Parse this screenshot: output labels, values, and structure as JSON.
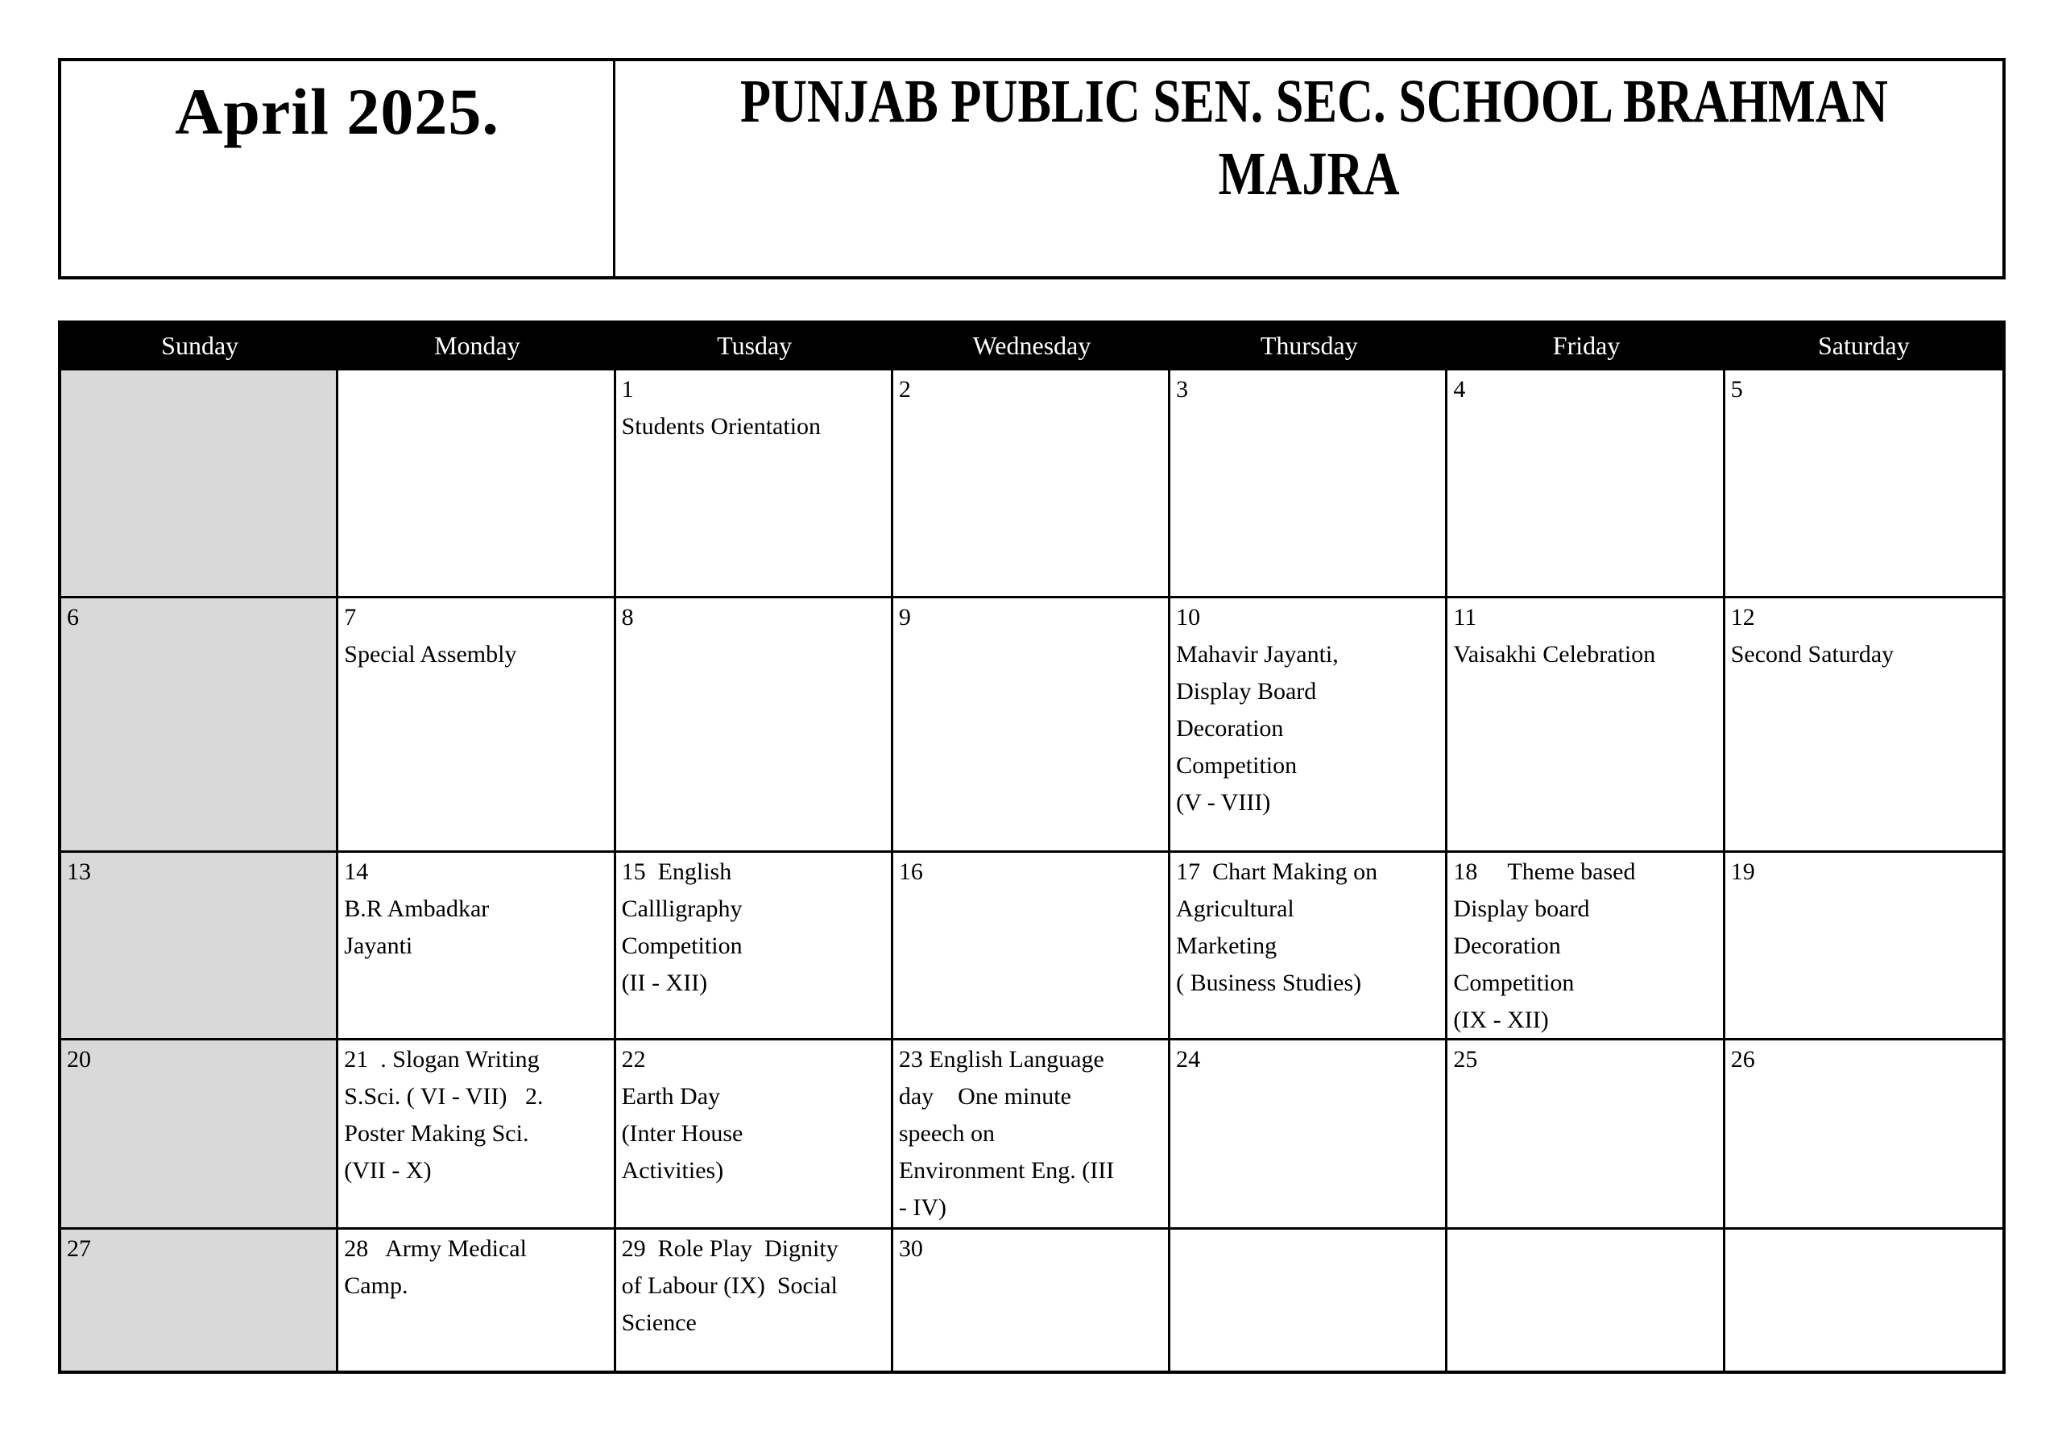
{
  "header": {
    "month_title": "April 2025.",
    "school_name_lines": [
      "PUNJAB PUBLIC SEN. SEC. SCHOOL BRAHMAN",
      "MAJRA"
    ]
  },
  "calendar": {
    "day_headers": [
      "Sunday",
      "Monday",
      "Tusday",
      "Wednesday",
      "Thursday",
      "Friday",
      "Saturday"
    ],
    "weeks": [
      [
        "",
        "",
        "1\nStudents Orientation",
        "2",
        "3",
        "4",
        "5"
      ],
      [
        "6",
        "7\nSpecial Assembly",
        "8",
        "9",
        "10\nMahavir Jayanti,\nDisplay Board\nDecoration\nCompetition\n(V - VIII)",
        "11\nVaisakhi Celebration",
        "12\nSecond Saturday"
      ],
      [
        "13",
        "14\nB.R Ambadkar\nJayanti",
        "15  English\nCallligraphy\nCompetition\n(II - XII)",
        "16",
        "17  Chart Making on\nAgricultural\nMarketing\n( Business Studies)",
        "18     Theme based\nDisplay board\nDecoration\nCompetition\n(IX - XII)",
        "19"
      ],
      [
        "20",
        "21  . Slogan Writing\nS.Sci. ( VI - VII)   2.\nPoster Making Sci.\n(VII - X)",
        "22\nEarth Day\n(Inter House\nActivities)",
        "23 English Language\nday    One minute\nspeech on\nEnvironment Eng. (III\n- IV)",
        "24",
        "25",
        "26"
      ],
      [
        "27",
        "28   Army Medical\nCamp.",
        "29  Role Play  Dignity\nof Labour (IX)  Social\nScience",
        "30",
        "",
        "",
        ""
      ]
    ]
  },
  "colors": {
    "border": "#000000",
    "day_header_bg": "#000000",
    "day_header_text": "#ffffff",
    "sunday_column_bg": "#d9d9d9",
    "cell_bg": "#ffffff"
  }
}
